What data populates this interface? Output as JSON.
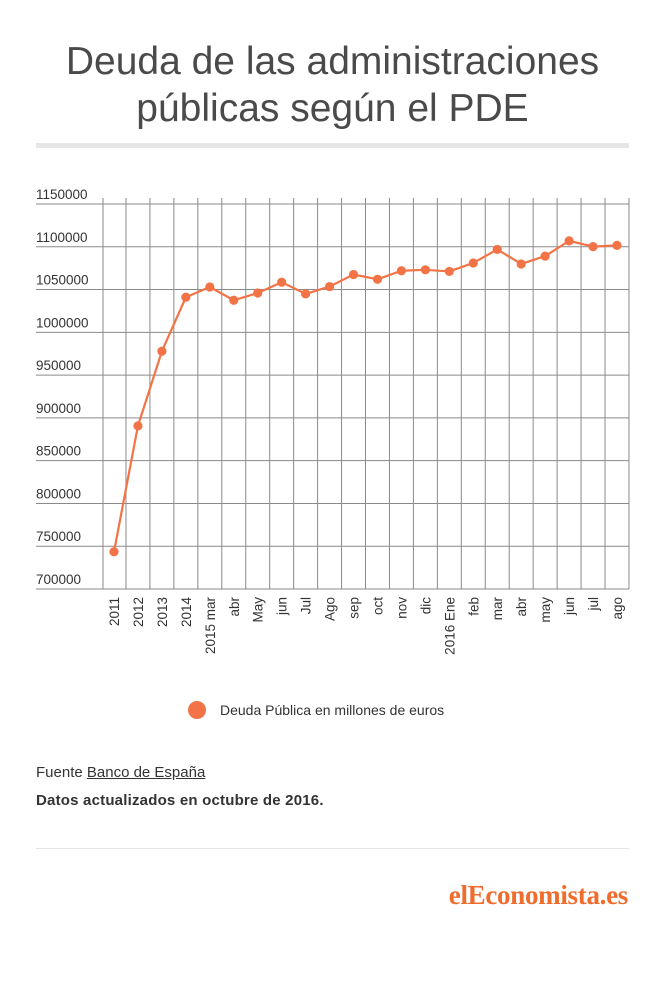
{
  "title_line1": "Deuda de las administraciones",
  "title_line2": "públicas según el PDE",
  "colors": {
    "series": "#f27446",
    "grid": "#8a8a8a",
    "text": "#333333"
  },
  "chart_data": {
    "type": "line",
    "title": "Deuda de las administraciones públicas según el PDE",
    "categories": [
      "2011",
      "2012",
      "2013",
      "2014",
      "2015 mar",
      "abr",
      "May",
      "jun",
      "Jul",
      "Ago",
      "sep",
      "oct",
      "nov",
      "dic",
      "2016 Ene",
      "feb",
      "mar",
      "abr",
      "may",
      "jun",
      "jul",
      "ago"
    ],
    "series": [
      {
        "name": "Deuda Pública en millones de euros",
        "values": [
          743500,
          890700,
          977900,
          1041000,
          1053000,
          1037500,
          1046000,
          1058600,
          1044900,
          1053500,
          1067600,
          1062000,
          1072000,
          1073100,
          1071200,
          1081100,
          1096900,
          1079900,
          1089100,
          1106900,
          1100200,
          1101600
        ]
      }
    ],
    "ylim": [
      700000,
      1150000
    ],
    "yticks": [
      1150000,
      1100000,
      1050000,
      1000000,
      950000,
      900000,
      850000,
      800000,
      750000,
      700000
    ],
    "xlabel": "",
    "ylabel": "",
    "grid": true,
    "legend_position": "bottom"
  },
  "source_prefix": "Fuente ",
  "source_link": "Banco de España",
  "updated": "Datos actualizados en octubre de 2016.",
  "logo": "elEconomista.es"
}
